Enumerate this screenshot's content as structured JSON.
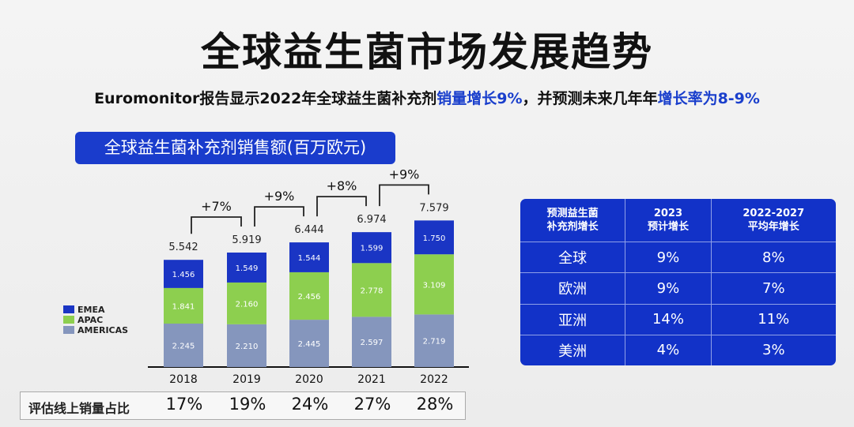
{
  "title": "全球益生菌市场发展趋势",
  "subtitle": {
    "part1": "Euromonitor报告显示2022年全球益生菌补充剂",
    "hl1": "销量增长9%",
    "part2": "，并预测未来几年年",
    "hl2": "增长率为8-9%"
  },
  "colors": {
    "EMEA": "#1a35c4",
    "APAC": "#8dcf4f",
    "AMERICAS": "#8596bd",
    "accent": "#1a3ccc"
  },
  "chart_data": {
    "type": "bar",
    "stacked": true,
    "title": "全球益生菌补充剂销售额(百万欧元)",
    "categories": [
      "2018",
      "2019",
      "2020",
      "2021",
      "2022"
    ],
    "series": [
      {
        "name": "AMERICAS",
        "values": [
          "2.245",
          "2.210",
          "2.445",
          "2.597",
          "2.719"
        ]
      },
      {
        "name": "APAC",
        "values": [
          "1.841",
          "2.160",
          "2.456",
          "2.778",
          "3.109"
        ]
      },
      {
        "name": "EMEA",
        "values": [
          "1.456",
          "1.549",
          "1.544",
          "1.599",
          "1.750"
        ]
      }
    ],
    "totals": [
      "5.542",
      "5.919",
      "6.444",
      "6.974",
      "7.579"
    ],
    "growth": [
      "+7%",
      "+9%",
      "+8%",
      "+9%"
    ],
    "legend": [
      "EMEA",
      "APAC",
      "AMERICAS"
    ],
    "legend_position": "left",
    "online_share": {
      "label": "评估线上销量占比",
      "values": [
        "17%",
        "19%",
        "24%",
        "27%",
        "28%"
      ]
    }
  },
  "table": {
    "header": [
      "预测益生菌\n补充剂增长",
      "2023\n预计增长",
      "2022-2027\n平均年增长"
    ],
    "rows": [
      [
        "全球",
        "9%",
        "8%"
      ],
      [
        "欧洲",
        "9%",
        "7%"
      ],
      [
        "亚洲",
        "14%",
        "11%"
      ],
      [
        "美洲",
        "4%",
        "3%"
      ]
    ]
  }
}
